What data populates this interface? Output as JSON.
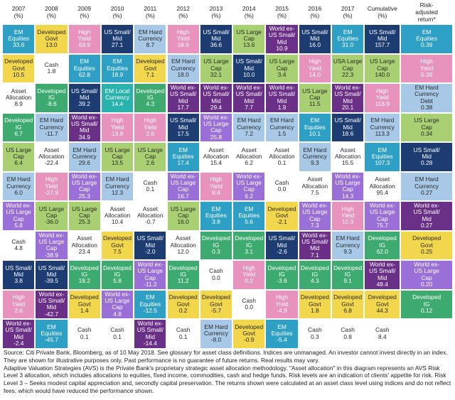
{
  "chart_data": {
    "type": "table",
    "title": "",
    "metric_note": "(%)",
    "columns": [
      {
        "label": "2007\n(%)"
      },
      {
        "label": "2008\n(%)"
      },
      {
        "label": "2009\n(%)"
      },
      {
        "label": "2010\n(%)"
      },
      {
        "label": "2011\n(%)"
      },
      {
        "label": "2012\n(%)"
      },
      {
        "label": "2013\n(%)"
      },
      {
        "label": "2014\n(%)"
      },
      {
        "label": "2015\n(%)"
      },
      {
        "label": "2016\n(%)"
      },
      {
        "label": "2017\n(%)"
      },
      {
        "label": "Cumulative\n(%)"
      },
      {
        "label": "Risk-\nadjusted\nreturn*"
      }
    ],
    "asset_classes": {
      "em_eq": {
        "label": "EM\nEquities",
        "color": "#2e9fc5",
        "text": "#ffffff"
      },
      "dev_gov": {
        "label": "Developed\nGovt",
        "color": "#f2d64c",
        "text": "#2a2a2a"
      },
      "hy": {
        "label": "High\nYield",
        "color": "#e793be",
        "text": "#ffffff"
      },
      "us_smid": {
        "label": "US Small/\nMid",
        "color": "#1c3c72",
        "text": "#ffffff"
      },
      "em_hc": {
        "label": "EM Hard\nCurrency",
        "color": "#a7c8e7",
        "text": "#2a2a2a"
      },
      "wx_smid": {
        "label": "World ex-\nUS Small/\nMid",
        "color": "#6a2f86",
        "text": "#ffffff"
      },
      "us_lc": {
        "label": "US Large\nCap",
        "color": "#a8cf71",
        "text": "#2a2a2a"
      },
      "usa_lc": {
        "label": "USA Large\nCap",
        "color": "#a8cf71",
        "text": "#2a2a2a"
      },
      "wx_lc": {
        "label": "World ex-\nUS Large\nCap",
        "color": "#9a6fd8",
        "text": "#ffffff"
      },
      "cash": {
        "label": "Cash",
        "color": "#ffffff",
        "text": "#2a2a2a"
      },
      "aa": {
        "label": "Asset\nAllocation",
        "color": "#ffffff",
        "text": "#2a2a2a"
      },
      "dev_ig": {
        "label": "Developed\nIG",
        "color": "#3daa6f",
        "text": "#ffffff"
      },
      "em_lc": {
        "label": "EM Local\nCurrency",
        "color": "#2ab3ae",
        "text": "#ffffff"
      },
      "em_hcd": {
        "label": "EM Hard\nCurrency\nDebt",
        "color": "#a7c8e7",
        "text": "#2a2a2a"
      }
    },
    "rows": [
      [
        {
          "a": "em_eq",
          "v": "33.6"
        },
        {
          "a": "dev_gov",
          "v": "13.0"
        },
        {
          "a": "hy",
          "v": "63.9"
        },
        {
          "a": "us_smid",
          "v": "27.1"
        },
        {
          "a": "em_hc",
          "v": "8.7"
        },
        {
          "a": "hy",
          "v": "18.9"
        },
        {
          "a": "us_smid",
          "v": "36.6"
        },
        {
          "a": "us_lc",
          "v": "13.6"
        },
        {
          "a": "wx_smid",
          "v": "10.9"
        },
        {
          "a": "us_smid",
          "v": "16.0"
        },
        {
          "a": "em_eq",
          "v": "31.0"
        },
        {
          "a": "us_smid",
          "v": "157.7"
        },
        {
          "a": "em_eq",
          "v": "0.39"
        }
      ],
      [
        {
          "a": "dev_gov",
          "v": "10.5"
        },
        {
          "a": "cash",
          "v": "1.8"
        },
        {
          "a": "em_eq",
          "v": "62.8"
        },
        {
          "a": "em_eq",
          "v": "18.9"
        },
        {
          "a": "dev_gov",
          "v": "7.1"
        },
        {
          "a": "em_hc",
          "v": "18.0"
        },
        {
          "a": "us_lc",
          "v": "32.1"
        },
        {
          "a": "us_smid",
          "v": "10.0"
        },
        {
          "a": "us_lc",
          "v": "3.4"
        },
        {
          "a": "hy",
          "v": "14.0"
        },
        {
          "a": "usa_lc",
          "v": "22.3"
        },
        {
          "a": "us_lc",
          "v": "140.0"
        },
        {
          "a": "hy",
          "v": "0.39"
        }
      ],
      [
        {
          "a": "aa",
          "v": "8.9"
        },
        {
          "a": "dev_ig",
          "v": "-8.6"
        },
        {
          "a": "us_smid",
          "v": "39.2"
        },
        {
          "a": "em_lc",
          "v": "14.4"
        },
        {
          "a": "dev_ig",
          "v": "4.3"
        },
        {
          "a": "wx_smid",
          "v": "17.7"
        },
        {
          "a": "wx_smid",
          "v": "29.4"
        },
        {
          "a": "wx_smid",
          "v": "7.7"
        },
        {
          "a": "wx_smid",
          "v": "1.9"
        },
        {
          "a": "us_lc",
          "v": "11.5"
        },
        {
          "a": "wx_smid",
          "v": "20.1"
        },
        {
          "a": "hy",
          "v": "118.9"
        },
        {
          "a": "em_hcd",
          "v": "0.38"
        }
      ],
      [
        {
          "a": "dev_ig",
          "v": "6.7"
        },
        {
          "a": "em_hc",
          "v": "-11.7"
        },
        {
          "a": "wx_smid",
          "v": "34.9"
        },
        {
          "a": "hy",
          "v": "13.8"
        },
        {
          "a": "hy",
          "v": "2.6"
        },
        {
          "a": "us_smid",
          "v": "17.5"
        },
        {
          "a": "wx_lc",
          "v": "25.8"
        },
        {
          "a": "em_hc",
          "v": "7.2"
        },
        {
          "a": "em_hc",
          "v": "1.5"
        },
        {
          "a": "em_eq",
          "v": "10.1"
        },
        {
          "a": "us_smid",
          "v": "18.6"
        },
        {
          "a": "em_hc",
          "v": "113.3"
        },
        {
          "a": "us_lc",
          "v": "0.34"
        }
      ],
      [
        {
          "a": "us_lc",
          "v": "6.4"
        },
        {
          "a": "aa",
          "v": "-22.4"
        },
        {
          "a": "em_hc",
          "v": "29.6"
        },
        {
          "a": "us_lc",
          "v": "13.5"
        },
        {
          "a": "us_lc",
          "v": "2.6"
        },
        {
          "a": "em_eq",
          "v": "17.4"
        },
        {
          "a": "aa",
          "v": "15.4"
        },
        {
          "a": "aa",
          "v": "6.2"
        },
        {
          "a": "aa",
          "v": "0.1"
        },
        {
          "a": "em_hc",
          "v": "9.3"
        },
        {
          "a": "aa",
          "v": "15.5"
        },
        {
          "a": "em_eq",
          "v": "107.3"
        },
        {
          "a": "us_smid",
          "v": "0.28"
        }
      ],
      [
        {
          "a": "em_hc",
          "v": "6.0"
        },
        {
          "a": "hy",
          "v": "-27.9"
        },
        {
          "a": "wx_lc",
          "v": "25.3"
        },
        {
          "a": "em_hc",
          "v": "12.3"
        },
        {
          "a": "cash",
          "v": "0.1"
        },
        {
          "a": "wx_lc",
          "v": "16.7"
        },
        {
          "a": "hy",
          "v": "8.4"
        },
        {
          "a": "wx_lc",
          "v": "6.2"
        },
        {
          "a": "cash",
          "v": "0.0"
        },
        {
          "a": "aa",
          "v": "7.5"
        },
        {
          "a": "wx_lc",
          "v": "14.3"
        },
        {
          "a": "aa",
          "v": "95.4"
        },
        {
          "a": "em_hc",
          "v": "0.27"
        }
      ],
      [
        {
          "a": "wx_lc",
          "v": "5.8"
        },
        {
          "a": "us_lc",
          "v": "-36.0"
        },
        {
          "a": "us_lc",
          "v": "25.3"
        },
        {
          "a": "aa",
          "v": "10.4"
        },
        {
          "a": "aa",
          "v": "-0.7"
        },
        {
          "a": "us_lc",
          "v": "16.0"
        },
        {
          "a": "em_eq",
          "v": "3.8"
        },
        {
          "a": "em_eq",
          "v": "5.6"
        },
        {
          "a": "dev_gov",
          "v": "-2.1"
        },
        {
          "a": "wx_lc",
          "v": "7.3"
        },
        {
          "a": "hy",
          "v": "10.3"
        },
        {
          "a": "wx_lc",
          "v": "75.7"
        },
        {
          "a": "wx_smid",
          "v": "0.27"
        }
      ],
      [
        {
          "a": "cash",
          "v": "4.8"
        },
        {
          "a": "wx_lc",
          "v": "-38.9"
        },
        {
          "a": "aa",
          "v": "23.4"
        },
        {
          "a": "dev_gov",
          "v": "7.5"
        },
        {
          "a": "us_smid",
          "v": "-2.0"
        },
        {
          "a": "aa",
          "v": "12.0"
        },
        {
          "a": "dev_ig",
          "v": "0.3"
        },
        {
          "a": "dev_ig",
          "v": "3.1"
        },
        {
          "a": "us_smid",
          "v": "-2.6"
        },
        {
          "a": "wx_smid",
          "v": "7.1"
        },
        {
          "a": "em_hc",
          "v": "9.3"
        },
        {
          "a": "dev_ig",
          "v": "62.0"
        },
        {
          "a": "dev_gov",
          "v": "0.25"
        }
      ],
      [
        {
          "a": "us_smid",
          "v": "3.8"
        },
        {
          "a": "us_smid",
          "v": "-39.5"
        },
        {
          "a": "dev_ig",
          "v": "19.2"
        },
        {
          "a": "dev_ig",
          "v": "5.8"
        },
        {
          "a": "wx_lc",
          "v": "-11.2"
        },
        {
          "a": "dev_ig",
          "v": "11.2"
        },
        {
          "a": "cash",
          "v": "0.0"
        },
        {
          "a": "hy",
          "v": "0.2"
        },
        {
          "a": "dev_ig",
          "v": "-3.6"
        },
        {
          "a": "dev_ig",
          "v": "4.3"
        },
        {
          "a": "dev_ig",
          "v": "9.1"
        },
        {
          "a": "wx_smid",
          "v": "48.4"
        },
        {
          "a": "wx_lc",
          "v": "0.20"
        }
      ],
      [
        {
          "a": "hy",
          "v": "2.6"
        },
        {
          "a": "wx_smid",
          "v": "-42.7"
        },
        {
          "a": "dev_gov",
          "v": "1.4"
        },
        {
          "a": "wx_lc",
          "v": "4.8"
        },
        {
          "a": "em_eq",
          "v": "-12.5"
        },
        {
          "a": "dev_gov",
          "v": "0.2"
        },
        {
          "a": "dev_gov",
          "v": "-5.7"
        },
        {
          "a": "cash",
          "v": "0.0"
        },
        {
          "a": "hy",
          "v": "-4.9"
        },
        {
          "a": "dev_gov",
          "v": "1.8"
        },
        {
          "a": "dev_gov",
          "v": "6.8"
        },
        {
          "a": "dev_gov",
          "v": "44.3"
        },
        {
          "a": "dev_ig",
          "v": "0.12"
        }
      ],
      [
        {
          "a": "wx_smid",
          "v": "-2.4"
        },
        {
          "a": "em_eq",
          "v": "-45.7"
        },
        {
          "a": "cash",
          "v": "0.1"
        },
        {
          "a": "cash",
          "v": "0.1"
        },
        {
          "a": "wx_smid",
          "v": "-14.4"
        },
        {
          "a": "cash",
          "v": "0.1"
        },
        {
          "a": "em_hc",
          "v": "-8.0"
        },
        {
          "a": "dev_gov",
          "v": "-0.9"
        },
        {
          "a": "em_eq",
          "v": "-5.4"
        },
        {
          "a": "cash",
          "v": "0.3"
        },
        {
          "a": "cash",
          "v": "0.8"
        },
        {
          "a": "cash",
          "v": "8.4"
        },
        null
      ]
    ]
  },
  "footnotes": {
    "line1": "Source: Citi Private Bank, Bloomberg, as of 10 May 2018. See glossary for asset class definitions. Indices are unmanaged. An investor cannot invest directly in an index. They are shown for illustrative purposes only. Past performance is no guarantee of future returns. Real results may vary.",
    "line2": "Adaptive Valuation Strategies (AVS) is the Private Bank's proprietary strategic asset allocation methodology. \"Asset allocation\" in this diagram represents an AVS Risk Level 3 allocation, which includes allocations to equities, fixed income, commodities, cash and hedge funds. Risk levels are an indication of clients' appetite for risk. Risk Level 3 – Seeks modest capital appreciation and, secondly capital preservation. The returns shown were calculated at an asset class level using indices and do not reflect fees, which would have reduced the performance shown."
  }
}
